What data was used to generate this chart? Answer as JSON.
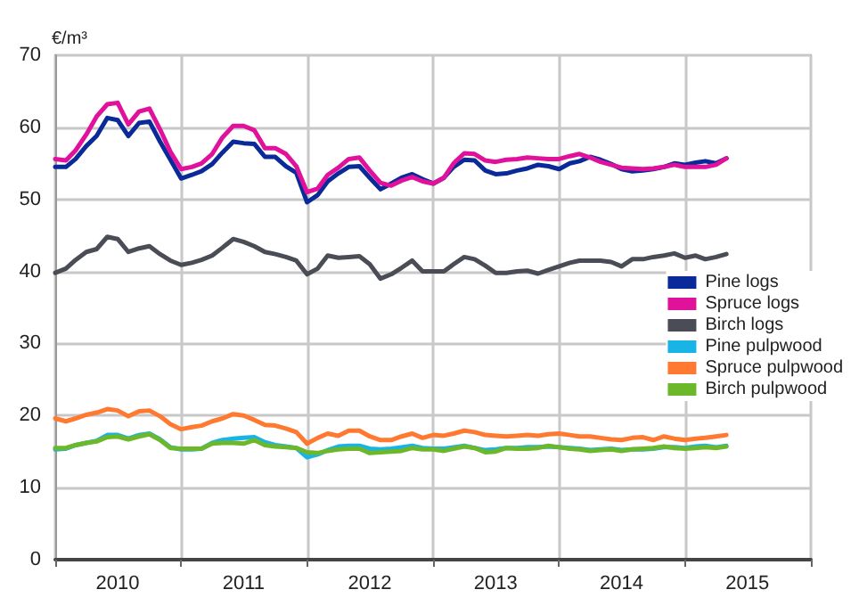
{
  "chart_data": {
    "type": "line",
    "ylabel": "€/m³",
    "x": [
      "2010-01",
      "2010-02",
      "2010-03",
      "2010-04",
      "2010-05",
      "2010-06",
      "2010-07",
      "2010-08",
      "2010-09",
      "2010-10",
      "2010-11",
      "2010-12",
      "2011-01",
      "2011-02",
      "2011-03",
      "2011-04",
      "2011-05",
      "2011-06",
      "2011-07",
      "2011-08",
      "2011-09",
      "2011-10",
      "2011-11",
      "2011-12",
      "2012-01",
      "2012-02",
      "2012-03",
      "2012-04",
      "2012-05",
      "2012-06",
      "2012-07",
      "2012-08",
      "2012-09",
      "2012-10",
      "2012-11",
      "2012-12",
      "2013-01",
      "2013-02",
      "2013-03",
      "2013-04",
      "2013-05",
      "2013-06",
      "2013-07",
      "2013-08",
      "2013-09",
      "2013-10",
      "2013-11",
      "2013-12",
      "2014-01",
      "2014-02",
      "2014-03",
      "2014-04",
      "2014-05",
      "2014-06",
      "2014-07",
      "2014-08",
      "2014-09",
      "2014-10",
      "2014-11",
      "2014-12",
      "2015-01",
      "2015-02",
      "2015-03",
      "2015-04",
      "2015-05"
    ],
    "series": [
      {
        "name": "Pine logs",
        "color": "#0a2a9a",
        "values": [
          54.5,
          54.5,
          55.6,
          57.4,
          58.8,
          61.3,
          61.0,
          58.8,
          60.6,
          60.8,
          58.0,
          55.5,
          52.9,
          53.4,
          53.9,
          54.9,
          56.5,
          58.0,
          57.8,
          57.7,
          55.9,
          55.9,
          54.6,
          53.7,
          49.6,
          50.6,
          52.5,
          53.6,
          54.5,
          54.6,
          53.0,
          51.4,
          52.2,
          53.0,
          53.5,
          52.8,
          52.2,
          53.0,
          54.5,
          55.5,
          55.4,
          54.0,
          53.5,
          53.6,
          54.0,
          54.3,
          54.8,
          54.6,
          54.2,
          55.0,
          55.3,
          55.9,
          55.5,
          54.9,
          54.2,
          53.9,
          54.0,
          54.2,
          54.5,
          55.0,
          54.8,
          55.1,
          55.3,
          55.0,
          55.7
        ]
      },
      {
        "name": "Spruce logs",
        "color": "#e0119a",
        "values": [
          55.6,
          55.4,
          56.8,
          59.0,
          61.5,
          63.2,
          63.4,
          60.4,
          62.2,
          62.6,
          59.7,
          56.6,
          54.2,
          54.5,
          55.0,
          56.3,
          58.6,
          60.2,
          60.2,
          59.6,
          57.1,
          57.1,
          56.3,
          54.6,
          51.0,
          51.5,
          53.4,
          54.4,
          55.6,
          55.8,
          54.0,
          52.3,
          51.9,
          52.6,
          53.1,
          52.5,
          52.2,
          53.0,
          55.0,
          56.4,
          56.3,
          55.4,
          55.2,
          55.5,
          55.6,
          55.8,
          55.7,
          55.6,
          55.6,
          56.0,
          56.3,
          55.8,
          55.2,
          54.8,
          54.4,
          54.3,
          54.2,
          54.3,
          54.5,
          54.8,
          54.5,
          54.5,
          54.5,
          54.8,
          55.7
        ]
      },
      {
        "name": "Birch logs",
        "color": "#4a4d55",
        "values": [
          39.8,
          40.4,
          41.6,
          42.7,
          43.1,
          44.8,
          44.5,
          42.7,
          43.2,
          43.5,
          42.4,
          41.5,
          40.9,
          41.2,
          41.6,
          42.2,
          43.3,
          44.5,
          44.1,
          43.5,
          42.7,
          42.4,
          42.0,
          41.5,
          39.6,
          40.4,
          42.2,
          41.9,
          42.0,
          42.1,
          41.0,
          39.0,
          39.6,
          40.5,
          41.5,
          40.0,
          40.0,
          40.0,
          41.0,
          42.0,
          41.7,
          40.8,
          39.8,
          39.8,
          40.0,
          40.1,
          39.7,
          40.2,
          40.7,
          41.2,
          41.5,
          41.5,
          41.5,
          41.3,
          40.7,
          41.7,
          41.7,
          42.0,
          42.2,
          42.5,
          41.9,
          42.2,
          41.7,
          42.0,
          42.4
        ]
      },
      {
        "name": "Pine pulpwood",
        "color": "#19b4e6",
        "values": [
          15.3,
          15.4,
          15.9,
          16.2,
          16.5,
          17.3,
          17.3,
          16.8,
          17.3,
          17.5,
          16.7,
          15.6,
          15.3,
          15.3,
          15.4,
          16.2,
          16.6,
          16.8,
          16.9,
          17.0,
          16.3,
          15.9,
          15.7,
          15.5,
          14.2,
          14.6,
          15.2,
          15.7,
          15.8,
          15.8,
          15.4,
          15.3,
          15.4,
          15.6,
          15.8,
          15.5,
          15.4,
          15.4,
          15.6,
          15.8,
          15.5,
          15.2,
          15.3,
          15.5,
          15.5,
          15.6,
          15.6,
          15.7,
          15.6,
          15.5,
          15.4,
          15.2,
          15.3,
          15.4,
          15.2,
          15.3,
          15.3,
          15.4,
          15.6,
          15.6,
          15.5,
          15.7,
          15.8,
          15.6,
          15.8
        ]
      },
      {
        "name": "Spruce pulpwood",
        "color": "#ff7a30",
        "values": [
          19.6,
          19.2,
          19.6,
          20.1,
          20.4,
          20.9,
          20.7,
          19.9,
          20.6,
          20.7,
          19.9,
          18.8,
          18.1,
          18.4,
          18.6,
          19.2,
          19.6,
          20.2,
          20.0,
          19.4,
          18.7,
          18.6,
          18.2,
          17.7,
          16.1,
          16.9,
          17.5,
          17.2,
          17.9,
          17.9,
          17.1,
          16.6,
          16.6,
          17.1,
          17.5,
          16.9,
          17.3,
          17.2,
          17.5,
          17.9,
          17.7,
          17.3,
          17.2,
          17.1,
          17.2,
          17.3,
          17.2,
          17.4,
          17.5,
          17.3,
          17.1,
          17.1,
          16.9,
          16.7,
          16.6,
          16.9,
          17.0,
          16.6,
          17.1,
          16.8,
          16.6,
          16.8,
          16.9,
          17.1,
          17.3
        ]
      },
      {
        "name": "Birch pulpwood",
        "color": "#6cb82a",
        "values": [
          15.5,
          15.5,
          15.9,
          16.2,
          16.4,
          17.0,
          17.1,
          16.7,
          17.1,
          17.4,
          16.6,
          15.5,
          15.4,
          15.4,
          15.4,
          16.1,
          16.2,
          16.2,
          16.1,
          16.6,
          15.9,
          15.7,
          15.6,
          15.5,
          14.9,
          14.8,
          15.1,
          15.3,
          15.4,
          15.4,
          14.8,
          14.9,
          15.0,
          15.1,
          15.5,
          15.3,
          15.3,
          15.1,
          15.4,
          15.7,
          15.5,
          14.9,
          15.0,
          15.5,
          15.4,
          15.4,
          15.5,
          15.8,
          15.6,
          15.4,
          15.3,
          15.1,
          15.2,
          15.3,
          15.1,
          15.3,
          15.4,
          15.5,
          15.7,
          15.5,
          15.4,
          15.5,
          15.6,
          15.5,
          15.7
        ]
      }
    ],
    "xlim": [
      "2010-01",
      "2016-01"
    ],
    "xticks": [
      {
        "value": "2010-01",
        "label": null
      },
      {
        "value": "2010-07",
        "label": "2010"
      },
      {
        "value": "2011-01",
        "label": null
      },
      {
        "value": "2011-07",
        "label": "2011"
      },
      {
        "value": "2012-01",
        "label": null
      },
      {
        "value": "2012-07",
        "label": "2012"
      },
      {
        "value": "2013-01",
        "label": null
      },
      {
        "value": "2013-07",
        "label": "2013"
      },
      {
        "value": "2014-01",
        "label": null
      },
      {
        "value": "2014-07",
        "label": "2014"
      },
      {
        "value": "2015-01",
        "label": null
      },
      {
        "value": "2015-07",
        "label": "2015"
      },
      {
        "value": "2016-01",
        "label": null
      }
    ],
    "ylim": [
      0,
      70
    ],
    "yticks": [
      0,
      10,
      20,
      30,
      40,
      50,
      60,
      70
    ],
    "grid": true,
    "legend": "right"
  }
}
